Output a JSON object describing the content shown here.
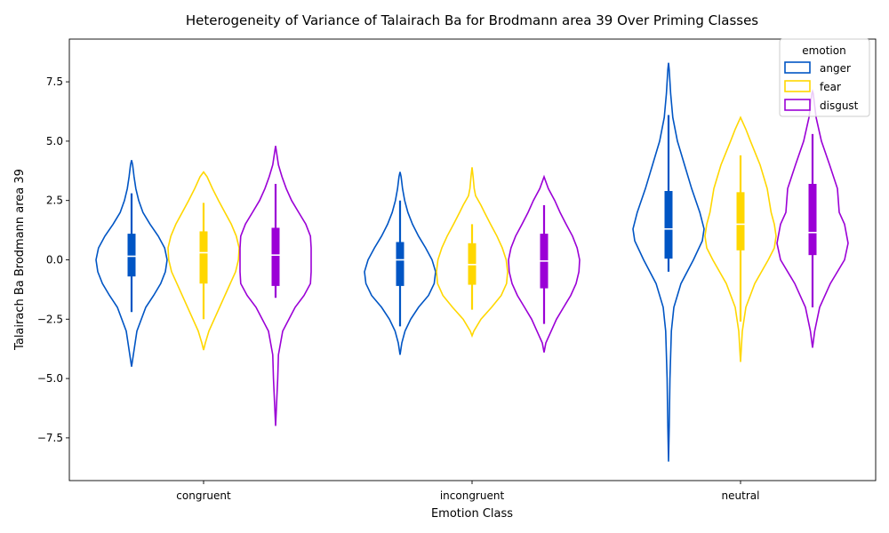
{
  "chart_data": {
    "type": "violin",
    "title": "Heterogeneity of Variance of Talairach Ba for Brodmann area 39 Over Priming Classes",
    "xlabel": "Emotion Class",
    "ylabel": "Talairach Ba Brodmann area 39",
    "categories": [
      "congruent",
      "incongruent",
      "neutral"
    ],
    "ylim": [
      -9.3,
      9.3
    ],
    "yticks": [
      -7.5,
      -5.0,
      -2.5,
      0.0,
      2.5,
      5.0,
      7.5
    ],
    "ytick_labels": [
      "−7.5",
      "−5.0",
      "−2.5",
      "0.0",
      "2.5",
      "5.0",
      "7.5"
    ],
    "grid": false,
    "legend": {
      "title": "emotion",
      "placement": "top-right"
    },
    "series": [
      {
        "name": "anger",
        "color": "#0055C4",
        "violins": [
          {
            "min": -4.5,
            "max": 4.2,
            "q1": -0.7,
            "median": 0.15,
            "q3": 1.1,
            "whisker_low": -2.2,
            "whisker_high": 2.8,
            "shape": [
              [
                -4.5,
                0.0
              ],
              [
                -4.0,
                0.05
              ],
              [
                -3.0,
                0.15
              ],
              [
                -2.0,
                0.4
              ],
              [
                -1.5,
                0.62
              ],
              [
                -1.0,
                0.82
              ],
              [
                -0.5,
                0.95
              ],
              [
                0.0,
                1.0
              ],
              [
                0.5,
                0.93
              ],
              [
                1.0,
                0.75
              ],
              [
                1.5,
                0.52
              ],
              [
                2.0,
                0.32
              ],
              [
                2.5,
                0.2
              ],
              [
                3.0,
                0.12
              ],
              [
                3.5,
                0.07
              ],
              [
                4.0,
                0.03
              ],
              [
                4.2,
                0.0
              ]
            ]
          },
          {
            "min": -4.0,
            "max": 3.7,
            "q1": -1.1,
            "median": 0.0,
            "q3": 0.75,
            "whisker_low": -2.8,
            "whisker_high": 2.5,
            "shape": [
              [
                -4.0,
                0.0
              ],
              [
                -3.5,
                0.05
              ],
              [
                -3.0,
                0.14
              ],
              [
                -2.5,
                0.3
              ],
              [
                -2.0,
                0.52
              ],
              [
                -1.5,
                0.8
              ],
              [
                -1.0,
                0.96
              ],
              [
                -0.5,
                1.0
              ],
              [
                0.0,
                0.9
              ],
              [
                0.5,
                0.72
              ],
              [
                1.0,
                0.52
              ],
              [
                1.5,
                0.35
              ],
              [
                2.0,
                0.22
              ],
              [
                2.5,
                0.13
              ],
              [
                3.0,
                0.07
              ],
              [
                3.5,
                0.03
              ],
              [
                3.7,
                0.0
              ]
            ]
          },
          {
            "min": -8.5,
            "max": 8.3,
            "q1": 0.05,
            "median": 1.3,
            "q3": 2.9,
            "whisker_low": -0.5,
            "whisker_high": 6.1,
            "shape": [
              [
                -8.5,
                0.0
              ],
              [
                -7.0,
                0.02
              ],
              [
                -5.0,
                0.04
              ],
              [
                -3.0,
                0.08
              ],
              [
                -2.0,
                0.15
              ],
              [
                -1.0,
                0.35
              ],
              [
                0.0,
                0.7
              ],
              [
                0.8,
                0.95
              ],
              [
                1.3,
                1.0
              ],
              [
                2.0,
                0.88
              ],
              [
                3.0,
                0.65
              ],
              [
                4.0,
                0.45
              ],
              [
                5.0,
                0.25
              ],
              [
                6.0,
                0.12
              ],
              [
                7.0,
                0.06
              ],
              [
                8.0,
                0.02
              ],
              [
                8.3,
                0.0
              ]
            ]
          }
        ]
      },
      {
        "name": "fear",
        "color": "#FFD700",
        "violins": [
          {
            "min": -3.8,
            "max": 3.7,
            "q1": -1.0,
            "median": 0.3,
            "q3": 1.2,
            "whisker_low": -2.5,
            "whisker_high": 2.4,
            "shape": [
              [
                -3.8,
                0.0
              ],
              [
                -3.5,
                0.05
              ],
              [
                -3.0,
                0.15
              ],
              [
                -2.5,
                0.3
              ],
              [
                -2.0,
                0.45
              ],
              [
                -1.5,
                0.6
              ],
              [
                -1.0,
                0.75
              ],
              [
                -0.5,
                0.9
              ],
              [
                0.0,
                0.98
              ],
              [
                0.5,
                1.0
              ],
              [
                1.0,
                0.92
              ],
              [
                1.5,
                0.78
              ],
              [
                2.0,
                0.6
              ],
              [
                2.5,
                0.42
              ],
              [
                3.0,
                0.25
              ],
              [
                3.5,
                0.1
              ],
              [
                3.7,
                0.0
              ]
            ]
          },
          {
            "min": -3.2,
            "max": 3.9,
            "q1": -1.05,
            "median": -0.2,
            "q3": 0.7,
            "whisker_low": -2.1,
            "whisker_high": 1.5,
            "shape": [
              [
                -3.2,
                0.0
              ],
              [
                -3.0,
                0.05
              ],
              [
                -2.5,
                0.25
              ],
              [
                -2.0,
                0.55
              ],
              [
                -1.5,
                0.82
              ],
              [
                -1.0,
                0.97
              ],
              [
                -0.5,
                1.0
              ],
              [
                0.0,
                0.96
              ],
              [
                0.5,
                0.85
              ],
              [
                1.0,
                0.7
              ],
              [
                1.5,
                0.52
              ],
              [
                2.0,
                0.35
              ],
              [
                2.3,
                0.25
              ],
              [
                2.7,
                0.1
              ],
              [
                3.0,
                0.06
              ],
              [
                3.5,
                0.03
              ],
              [
                3.9,
                0.0
              ]
            ]
          },
          {
            "min": -4.3,
            "max": 6.0,
            "q1": 0.4,
            "median": 1.5,
            "q3": 2.85,
            "whisker_low": -2.6,
            "whisker_high": 4.4,
            "shape": [
              [
                -4.3,
                0.0
              ],
              [
                -3.0,
                0.05
              ],
              [
                -2.0,
                0.15
              ],
              [
                -1.0,
                0.4
              ],
              [
                0.0,
                0.78
              ],
              [
                0.5,
                0.95
              ],
              [
                1.0,
                1.0
              ],
              [
                1.5,
                0.95
              ],
              [
                2.0,
                0.86
              ],
              [
                3.0,
                0.75
              ],
              [
                4.0,
                0.55
              ],
              [
                5.0,
                0.28
              ],
              [
                5.5,
                0.15
              ],
              [
                6.0,
                0.0
              ]
            ]
          }
        ]
      },
      {
        "name": "disgust",
        "color": "#9B00D6",
        "violins": [
          {
            "min": -7.0,
            "max": 4.8,
            "q1": -1.1,
            "median": 0.2,
            "q3": 1.35,
            "whisker_low": -1.6,
            "whisker_high": 3.2,
            "shape": [
              [
                -7.0,
                0.0
              ],
              [
                -6.0,
                0.03
              ],
              [
                -5.0,
                0.06
              ],
              [
                -4.0,
                0.08
              ],
              [
                -3.0,
                0.2
              ],
              [
                -2.0,
                0.55
              ],
              [
                -1.5,
                0.8
              ],
              [
                -1.0,
                0.98
              ],
              [
                -0.5,
                1.0
              ],
              [
                0.0,
                1.0
              ],
              [
                0.5,
                1.0
              ],
              [
                1.0,
                0.98
              ],
              [
                1.5,
                0.85
              ],
              [
                2.0,
                0.65
              ],
              [
                2.5,
                0.45
              ],
              [
                3.0,
                0.3
              ],
              [
                3.5,
                0.18
              ],
              [
                4.0,
                0.08
              ],
              [
                4.5,
                0.03
              ],
              [
                4.8,
                0.0
              ]
            ]
          },
          {
            "min": -3.9,
            "max": 3.5,
            "q1": -1.2,
            "median": -0.05,
            "q3": 1.1,
            "whisker_low": -2.7,
            "whisker_high": 2.3,
            "shape": [
              [
                -3.9,
                0.0
              ],
              [
                -3.5,
                0.05
              ],
              [
                -3.0,
                0.2
              ],
              [
                -2.5,
                0.35
              ],
              [
                -2.0,
                0.55
              ],
              [
                -1.5,
                0.75
              ],
              [
                -1.0,
                0.9
              ],
              [
                -0.5,
                0.98
              ],
              [
                0.0,
                1.0
              ],
              [
                0.5,
                0.93
              ],
              [
                1.0,
                0.8
              ],
              [
                1.5,
                0.62
              ],
              [
                2.0,
                0.45
              ],
              [
                2.5,
                0.3
              ],
              [
                3.0,
                0.12
              ],
              [
                3.5,
                0.0
              ]
            ]
          },
          {
            "min": -3.7,
            "max": 7.1,
            "q1": 0.2,
            "median": 1.15,
            "q3": 3.2,
            "whisker_low": -2.0,
            "whisker_high": 5.3,
            "shape": [
              [
                -3.7,
                0.0
              ],
              [
                -3.0,
                0.06
              ],
              [
                -2.0,
                0.2
              ],
              [
                -1.0,
                0.5
              ],
              [
                0.0,
                0.9
              ],
              [
                0.7,
                1.0
              ],
              [
                1.5,
                0.9
              ],
              [
                2.0,
                0.75
              ],
              [
                3.0,
                0.7
              ],
              [
                4.0,
                0.48
              ],
              [
                5.0,
                0.25
              ],
              [
                6.0,
                0.1
              ],
              [
                7.0,
                0.02
              ],
              [
                7.1,
                0.0
              ]
            ]
          }
        ]
      }
    ]
  }
}
